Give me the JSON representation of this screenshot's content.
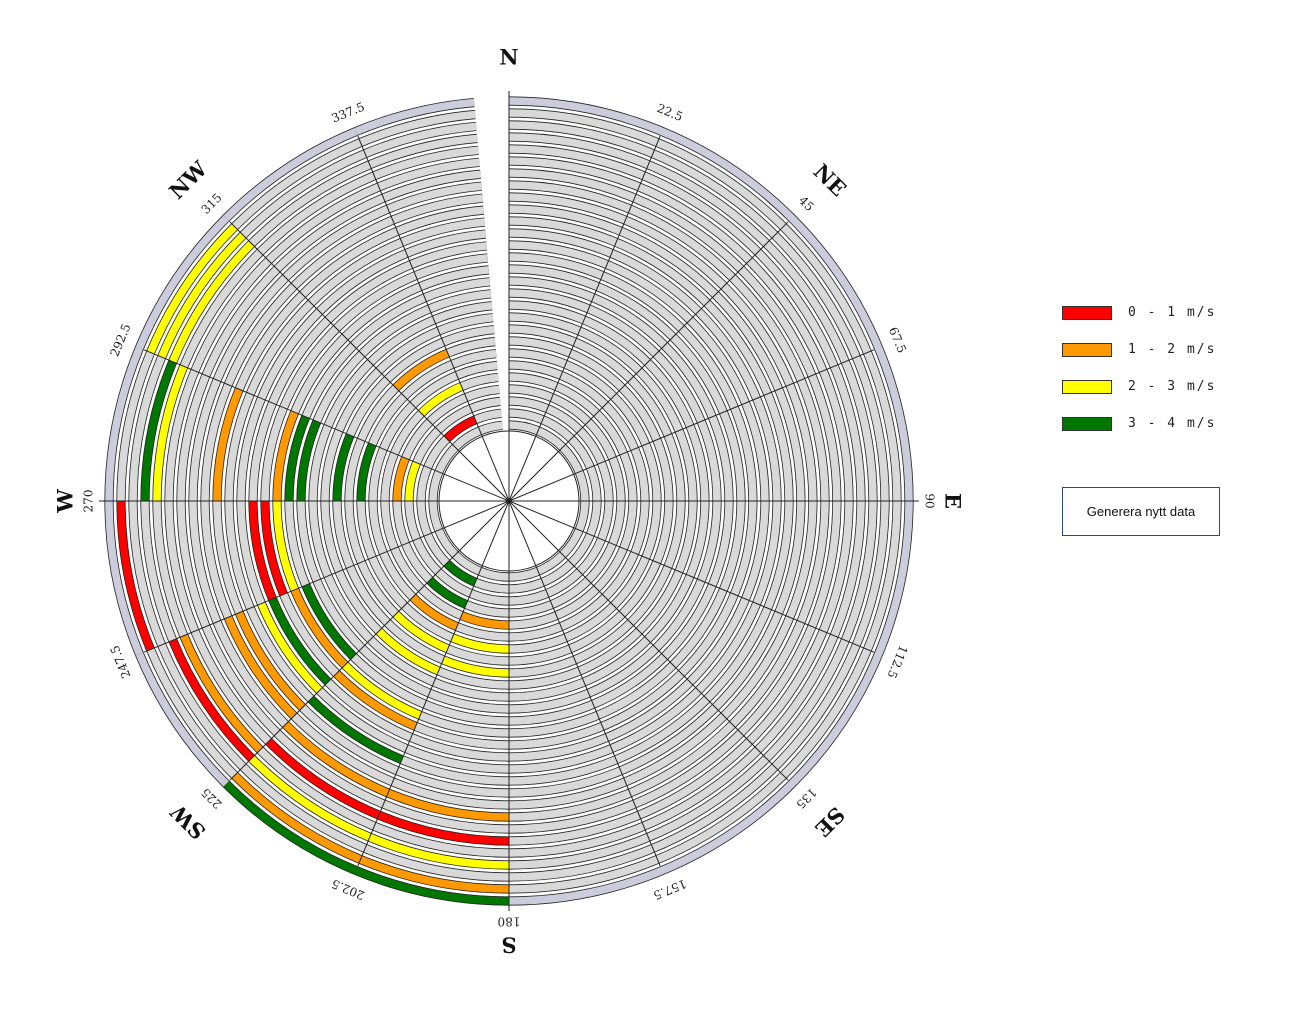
{
  "chart_data": {
    "type": "polar-rings",
    "title": "",
    "sector_count": 16,
    "ring_count": 28,
    "compass_labels": [
      "N",
      "NE",
      "E",
      "SE",
      "S",
      "SW",
      "W",
      "NW"
    ],
    "angle_labels": [
      "22.5",
      "45",
      "67.5",
      "90",
      "112.5",
      "135",
      "157.5",
      "180",
      "202.5",
      "225",
      "247.5",
      "270",
      "292.5",
      "315",
      "337.5"
    ],
    "legend": [
      {
        "label": "0 - 1 m/s",
        "color": "#ff0000"
      },
      {
        "label": "1 - 2 m/s",
        "color": "#ff9900"
      },
      {
        "label": "2 - 3 m/s",
        "color": "#ffff00"
      },
      {
        "label": "3 - 4 m/s",
        "color": "#007700"
      }
    ],
    "colors": {
      "empty_ring": "#d9d9d9",
      "outer_ring": "#ccccdd",
      "ring_stroke": "#222222",
      "inner_circle": "#ffffff"
    },
    "empty_ring_stripe": 4,
    "sectors": [
      {
        "start": 0,
        "end": 180,
        "rings": 28,
        "segments": []
      },
      {
        "start": 180,
        "end": 202.5,
        "rings": 28,
        "segments": [
          {
            "ring": 4,
            "band": 1
          },
          {
            "ring": 6,
            "band": 2
          },
          {
            "ring": 8,
            "band": 2
          },
          {
            "ring": 20,
            "band": 1
          },
          {
            "ring": 22,
            "band": 0
          },
          {
            "ring": 24,
            "band": 2
          },
          {
            "ring": 26,
            "band": 1
          },
          {
            "ring": 27,
            "band": 3
          }
        ]
      },
      {
        "start": 202.5,
        "end": 225,
        "rings": 28,
        "segments": [
          {
            "ring": 1,
            "band": 3
          },
          {
            "ring": 3,
            "band": 3
          },
          {
            "ring": 5,
            "band": 1
          },
          {
            "ring": 7,
            "band": 2
          },
          {
            "ring": 9,
            "band": 2
          },
          {
            "ring": 13,
            "band": 2
          },
          {
            "ring": 14,
            "band": 1
          },
          {
            "ring": 17,
            "band": 3
          },
          {
            "ring": 20,
            "band": 1
          },
          {
            "ring": 22,
            "band": 0
          },
          {
            "ring": 24,
            "band": 2
          },
          {
            "ring": 26,
            "band": 1
          },
          {
            "ring": 27,
            "band": 3
          }
        ]
      },
      {
        "start": 225,
        "end": 247.5,
        "rings": 28,
        "segments": [
          {
            "ring": 12,
            "band": 3
          },
          {
            "ring": 13,
            "band": 1
          },
          {
            "ring": 15,
            "band": 3
          },
          {
            "ring": 16,
            "band": 2
          },
          {
            "ring": 18,
            "band": 1
          },
          {
            "ring": 19,
            "band": 1
          },
          {
            "ring": 23,
            "band": 1
          },
          {
            "ring": 24,
            "band": 0
          }
        ]
      },
      {
        "start": 247.5,
        "end": 270,
        "rings": 28,
        "segments": [
          {
            "ring": 13,
            "band": 2
          },
          {
            "ring": 14,
            "band": 0
          },
          {
            "ring": 15,
            "band": 0
          },
          {
            "ring": 26,
            "band": 0
          }
        ]
      },
      {
        "start": 270,
        "end": 292.5,
        "rings": 28,
        "segments": [
          {
            "ring": 2,
            "band": 2
          },
          {
            "ring": 3,
            "band": 1
          },
          {
            "ring": 6,
            "band": 3
          },
          {
            "ring": 8,
            "band": 3
          },
          {
            "ring": 11,
            "band": 3
          },
          {
            "ring": 12,
            "band": 3
          },
          {
            "ring": 13,
            "band": 1
          },
          {
            "ring": 18,
            "band": 1
          },
          {
            "ring": 23,
            "band": 2
          },
          {
            "ring": 24,
            "band": 3
          }
        ]
      },
      {
        "start": 292.5,
        "end": 315,
        "rings": 28,
        "segments": [
          {
            "ring": 24,
            "band": 2
          },
          {
            "ring": 25,
            "band": 2
          },
          {
            "ring": 26,
            "band": 2
          }
        ]
      },
      {
        "start": 315,
        "end": 337.5,
        "rings": 28,
        "segments": [
          {
            "ring": 1,
            "band": 0
          },
          {
            "ring": 4,
            "band": 2
          },
          {
            "ring": 7,
            "band": 1
          }
        ]
      },
      {
        "start": 337.5,
        "end": 355,
        "rings": 28,
        "segments": []
      }
    ]
  },
  "button": {
    "label": "Generera nytt data"
  }
}
